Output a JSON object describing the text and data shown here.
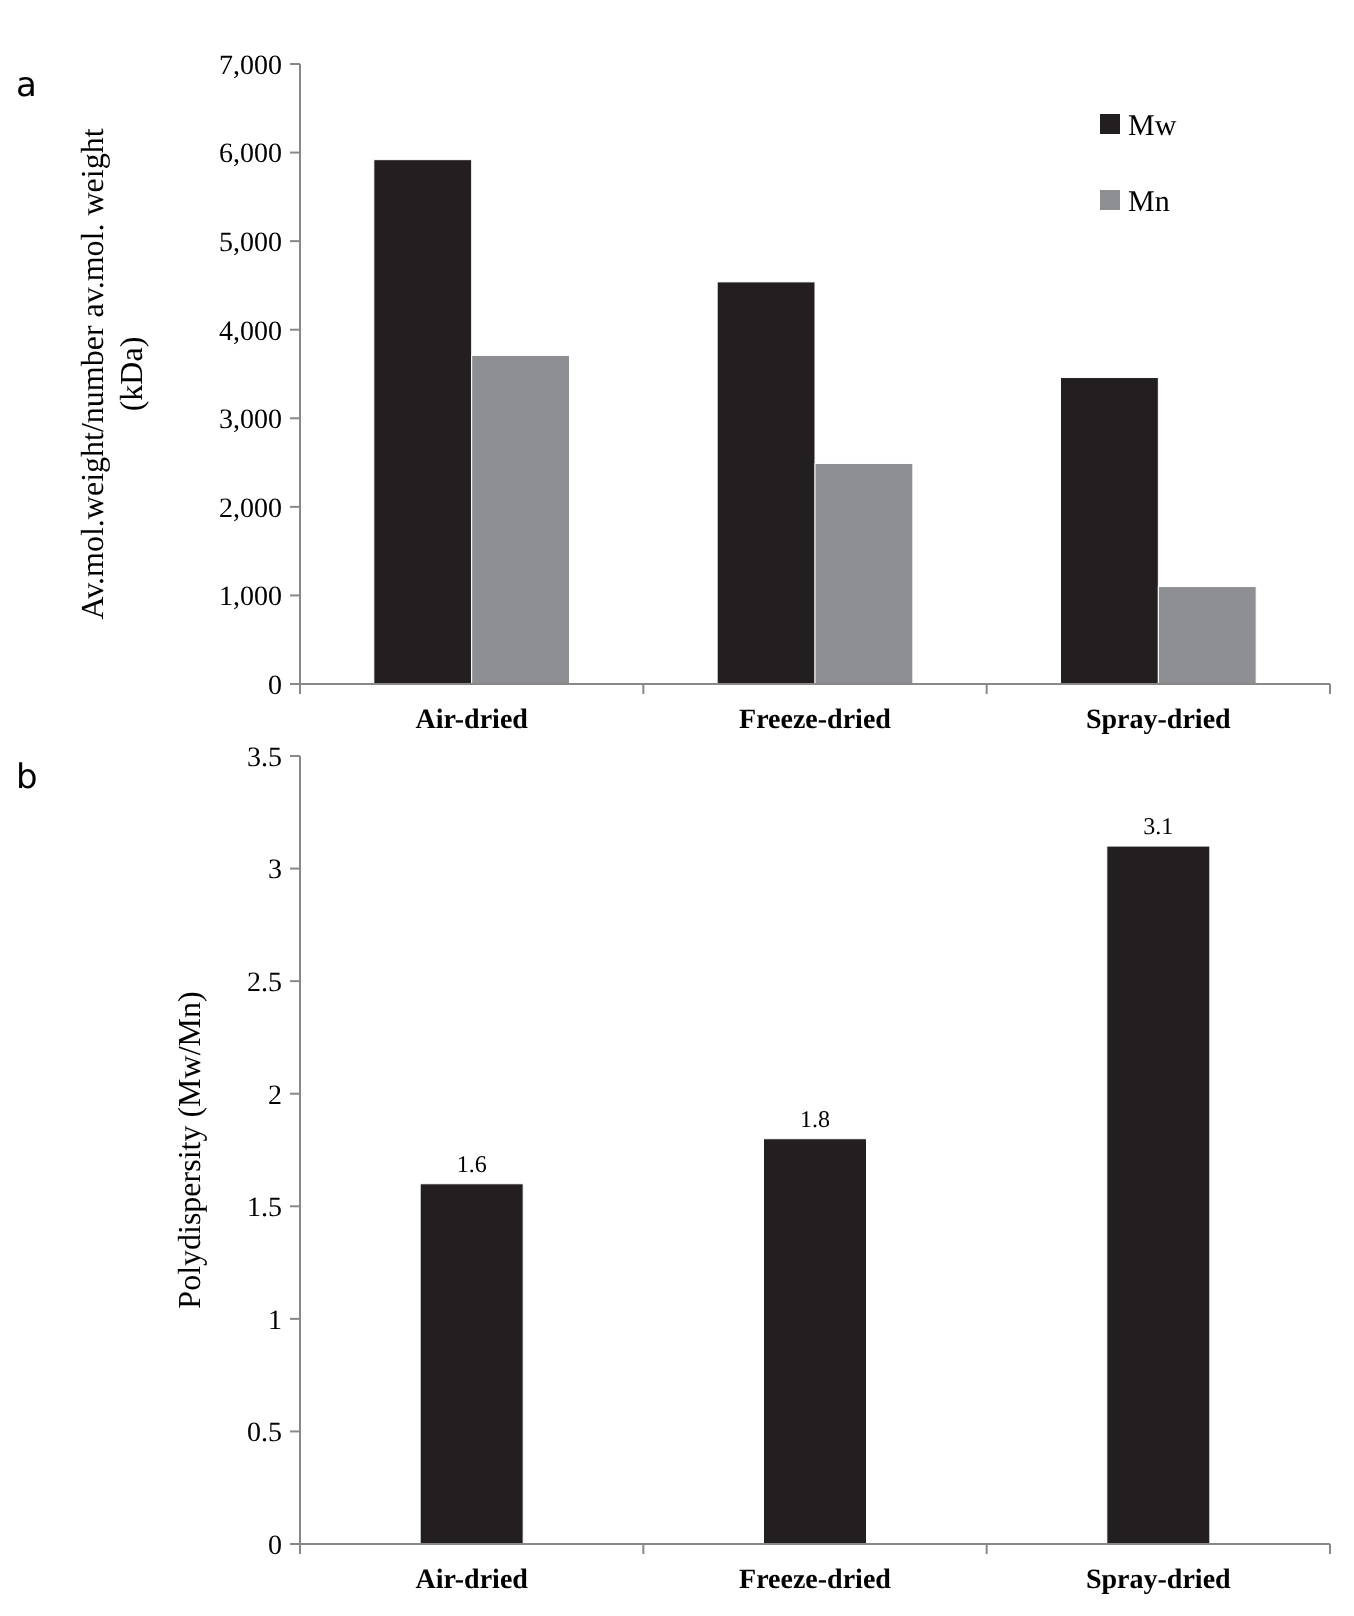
{
  "chart_data": [
    {
      "type": "bar",
      "annotations": [
        "a"
      ],
      "ylabel": "Av.mol.weight/number av.mol. weight (kDa)",
      "categories": [
        "Air-dried",
        "Freeze-dried",
        "Spray-dried"
      ],
      "series": [
        {
          "name": "Mw",
          "color": "#231f20",
          "values": [
            5920,
            4540,
            3460
          ]
        },
        {
          "name": "Mn",
          "color": "#8e8f93",
          "values": [
            3710,
            2490,
            1100
          ]
        }
      ],
      "ylim": [
        0,
        7000
      ],
      "yticks": [
        {
          "value": 0,
          "label": "0"
        },
        {
          "value": 1000,
          "label": "1,000"
        },
        {
          "value": 2000,
          "label": "2,000"
        },
        {
          "value": 3000,
          "label": "3,000"
        },
        {
          "value": 4000,
          "label": "4,000"
        },
        {
          "value": 5000,
          "label": "5,000"
        },
        {
          "value": 6000,
          "label": "6,000"
        },
        {
          "value": 7000,
          "label": "7,000"
        }
      ],
      "legend": "top right",
      "grid": false
    },
    {
      "type": "bar",
      "annotations": [
        "b"
      ],
      "ylabel": "Polydispersity (Mw/Mn)",
      "categories": [
        "Air-dried",
        "Freeze-dried",
        "Spray-dried"
      ],
      "series": [
        {
          "color": "#231f20",
          "values": [
            1.6,
            1.8,
            3.1
          ]
        }
      ],
      "ylim": [
        0,
        3.5
      ],
      "yticks": [
        0,
        0.5,
        1,
        1.5,
        2,
        2.5,
        3,
        3.5
      ],
      "data_labels": true,
      "grid": false
    }
  ]
}
